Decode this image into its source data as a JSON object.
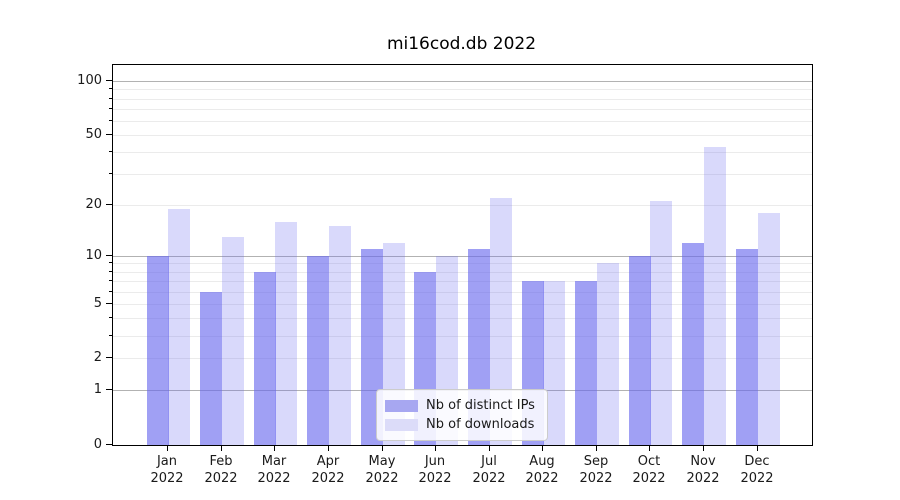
{
  "title": "mi16cod.db 2022",
  "chart_data": {
    "type": "bar",
    "title": "mi16cod.db 2022",
    "xlabel": "",
    "ylabel": "",
    "scale": "log1p",
    "grid": true,
    "legend_position": "lower-center",
    "categories": [
      "Jan 2022",
      "Feb 2022",
      "Mar 2022",
      "Apr 2022",
      "May 2022",
      "Jun 2022",
      "Jul 2022",
      "Aug 2022",
      "Sep 2022",
      "Oct 2022",
      "Nov 2022",
      "Dec 2022"
    ],
    "series": [
      {
        "name": "Nb of distinct IPs",
        "color": "rgba(102,102,238,0.62)",
        "legend_color": "#a7a7f1",
        "values": [
          10,
          6,
          8,
          10,
          11,
          8,
          11,
          7,
          7,
          10,
          12,
          11
        ]
      },
      {
        "name": "Nb of downloads",
        "color": "rgba(102,102,238,0.25)",
        "legend_color": "#dcdcf9",
        "values": [
          19,
          13,
          16,
          15,
          12,
          10,
          22,
          7,
          9,
          21,
          43,
          18
        ]
      }
    ],
    "ylim": [
      0,
      123
    ],
    "y_ticks_labeled": [
      0,
      1,
      2,
      5,
      10,
      20,
      50,
      100
    ],
    "y_ticks_minor": [
      3,
      4,
      6,
      7,
      8,
      9,
      30,
      40,
      60,
      70,
      80,
      90
    ],
    "y_gridlines_major": [
      1,
      10,
      100
    ]
  },
  "legend": {
    "items": [
      {
        "label": "Nb of distinct IPs"
      },
      {
        "label": "Nb of downloads"
      }
    ]
  }
}
